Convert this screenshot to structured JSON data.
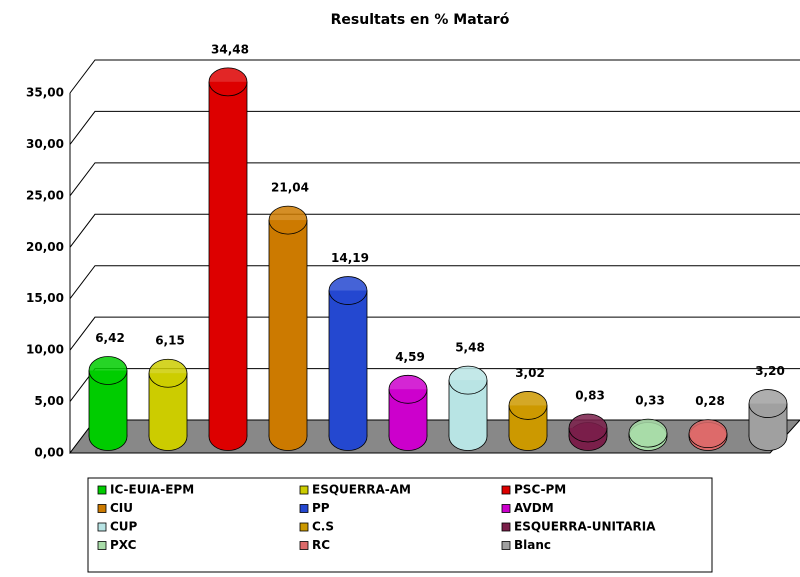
{
  "chart_data": {
    "type": "bar3d",
    "title": "Resultats en % Mataró",
    "categories": [
      "IC-EUIA-EPM",
      "ESQUERRA-AM",
      "PSC-PM",
      "CIU",
      "PP",
      "AVDM",
      "CUP",
      "C.S",
      "ESQUERRA-UNITARIA",
      "PXC",
      "RC",
      "Blanc"
    ],
    "values": [
      6.42,
      6.15,
      34.48,
      21.04,
      14.19,
      4.59,
      5.48,
      3.02,
      0.83,
      0.33,
      0.28,
      3.2
    ],
    "value_labels": [
      "6,42",
      "6,15",
      "34,48",
      "21,04",
      "14,19",
      "4,59",
      "5,48",
      "3,02",
      "0,83",
      "0,33",
      "0,28",
      "3,20"
    ],
    "colors": [
      "#00cc00",
      "#cccc00",
      "#dd0000",
      "#cc7a00",
      "#2448d0",
      "#cc00cc",
      "#b8e4e4",
      "#cc9900",
      "#7a1f4a",
      "#a8dca8",
      "#dd6a6a",
      "#a0a0a0"
    ],
    "ylim": [
      0,
      35
    ],
    "yticks": [
      {
        "value": 0,
        "label": "0,00"
      },
      {
        "value": 5,
        "label": "5,00"
      },
      {
        "value": 10,
        "label": "10,00"
      },
      {
        "value": 15,
        "label": "15,00"
      },
      {
        "value": 20,
        "label": "20,00"
      },
      {
        "value": 25,
        "label": "25,00"
      },
      {
        "value": 30,
        "label": "30,00"
      },
      {
        "value": 35,
        "label": "35,00"
      }
    ],
    "grid": true
  }
}
